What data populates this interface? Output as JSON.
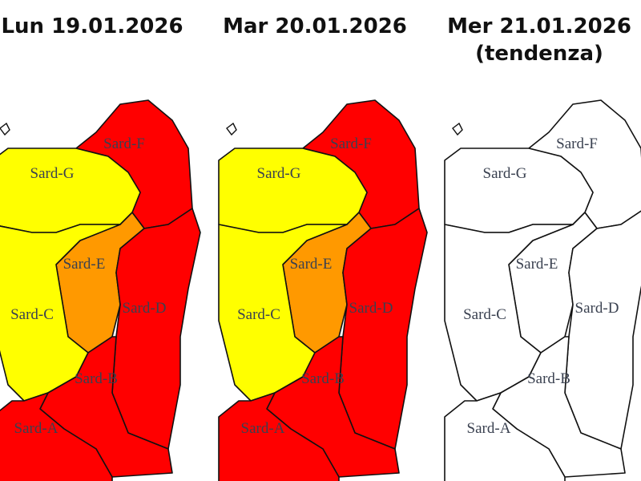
{
  "panels": [
    {
      "title": "Lun 19.01.2026",
      "zones": [
        {
          "label": "Sard-F",
          "color": "#ff0000"
        },
        {
          "label": "Sard-G",
          "color": "#ffff00"
        },
        {
          "label": "Sard-E",
          "color": "#ff9900"
        },
        {
          "label": "Sard-D",
          "color": "#ff0000"
        },
        {
          "label": "Sard-C",
          "color": "#ffff00"
        },
        {
          "label": "Sard-B",
          "color": "#ff0000"
        },
        {
          "label": "Sard-A",
          "color": "#ff0000"
        }
      ]
    },
    {
      "title": "Mar 20.01.2026",
      "zones": [
        {
          "label": "Sard-F",
          "color": "#ff0000"
        },
        {
          "label": "Sard-G",
          "color": "#ffff00"
        },
        {
          "label": "Sard-E",
          "color": "#ff9900"
        },
        {
          "label": "Sard-D",
          "color": "#ff0000"
        },
        {
          "label": "Sard-C",
          "color": "#ffff00"
        },
        {
          "label": "Sard-B",
          "color": "#ff0000"
        },
        {
          "label": "Sard-A",
          "color": "#ff0000"
        }
      ]
    },
    {
      "title": "Mer 21.01.2026",
      "subtitle": "(tendenza)",
      "zones": [
        {
          "label": "Sard-F",
          "color": "#ffffff"
        },
        {
          "label": "Sard-G",
          "color": "#ffffff"
        },
        {
          "label": "Sard-E",
          "color": "#ffffff"
        },
        {
          "label": "Sard-D",
          "color": "#ffffff"
        },
        {
          "label": "Sard-C",
          "color": "#ffffff"
        },
        {
          "label": "Sard-B",
          "color": "#ffffff"
        },
        {
          "label": "Sard-A",
          "color": "#ffffff"
        }
      ]
    }
  ]
}
